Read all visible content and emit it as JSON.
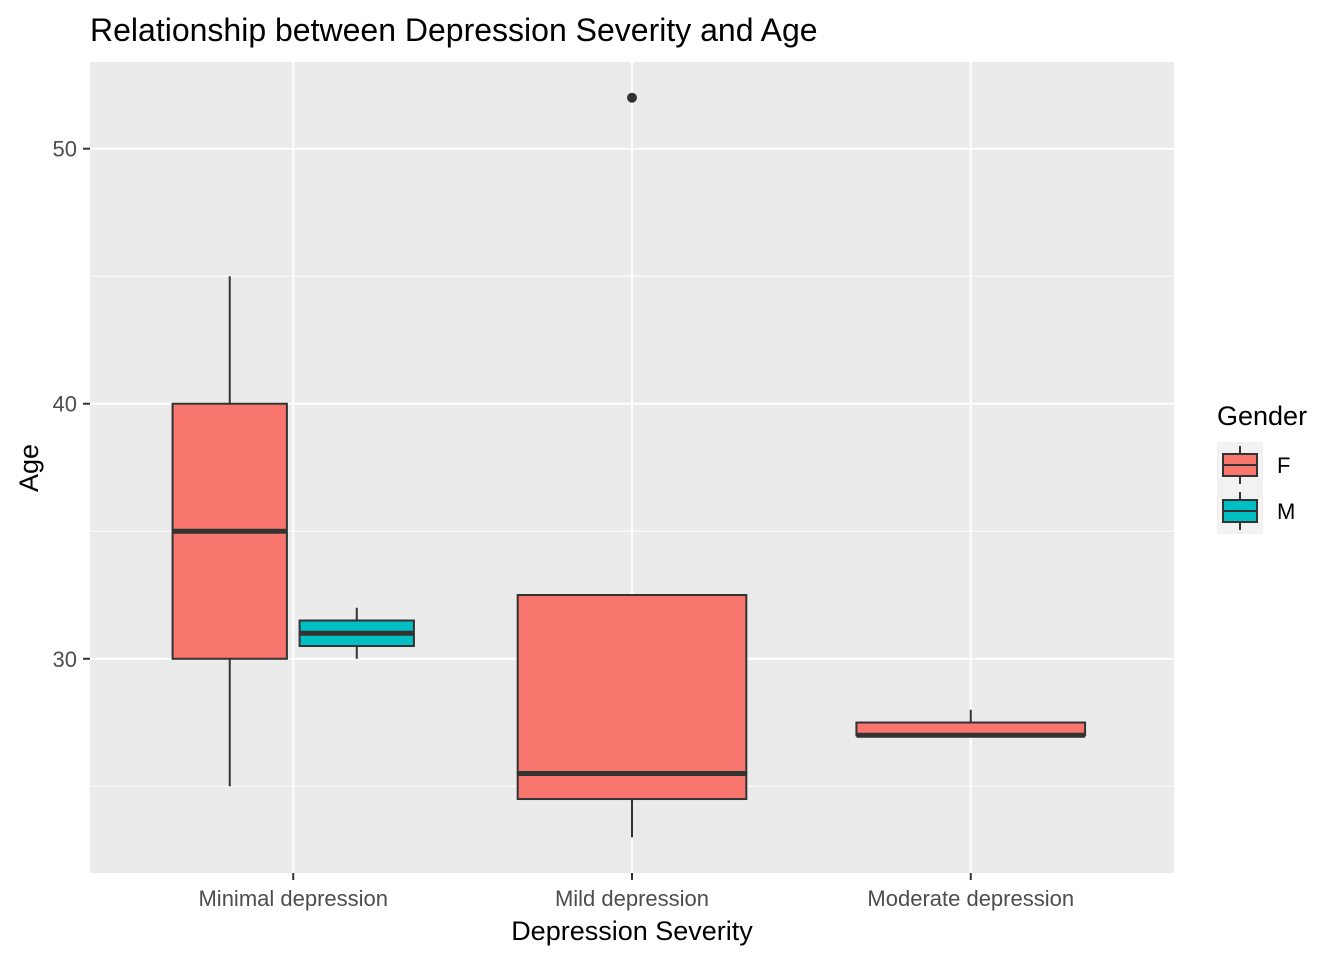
{
  "chart_data": {
    "type": "boxplot",
    "title": "Relationship between Depression Severity and Age",
    "xlabel": "Depression Severity",
    "ylabel": "Age",
    "categories": [
      "Minimal depression",
      "Mild depression",
      "Moderate depression"
    ],
    "ylim": [
      21.6,
      53.4
    ],
    "yticks": [
      30,
      40,
      50
    ],
    "grid": true,
    "legend": {
      "title": "Gender",
      "position": "right",
      "entries": [
        "F",
        "M"
      ]
    },
    "colors": {
      "F": "#F8766D",
      "M": "#00BFC4",
      "panel": "#EBEBEB",
      "grid": "#FFFFFF",
      "outline": "#333333"
    },
    "series": [
      {
        "name": "F",
        "boxes": [
          {
            "category": "Minimal depression",
            "min": 25,
            "q1": 30,
            "median": 35,
            "q3": 40,
            "max": 45,
            "outliers": []
          },
          {
            "category": "Mild depression",
            "min": 23,
            "q1": 24.5,
            "median": 25.5,
            "q3": 32.5,
            "max": 32.5,
            "outliers": [
              52
            ]
          },
          {
            "category": "Moderate depression",
            "min": 27,
            "q1": 27,
            "median": 27,
            "q3": 27.5,
            "max": 28,
            "outliers": []
          }
        ]
      },
      {
        "name": "M",
        "boxes": [
          {
            "category": "Minimal depression",
            "min": 30,
            "q1": 30.5,
            "median": 31,
            "q3": 31.5,
            "max": 32,
            "outliers": []
          }
        ]
      }
    ]
  }
}
